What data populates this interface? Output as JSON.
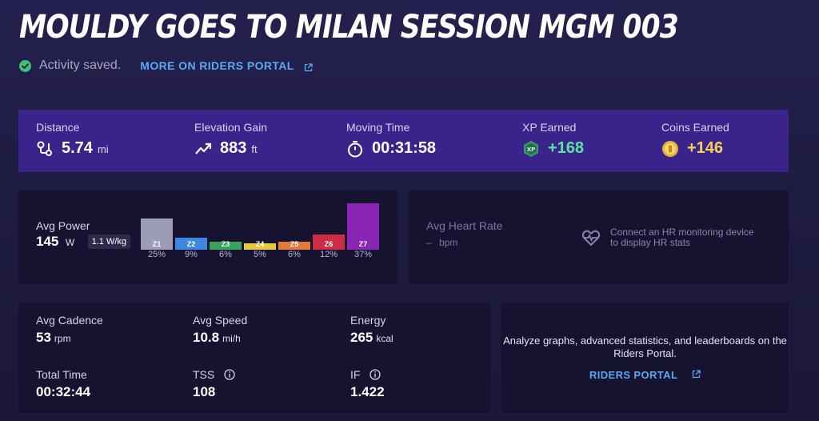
{
  "header": {
    "title": "MOULDY GOES TO MILAN SESSION MGM 003",
    "saved_text": "Activity saved.",
    "portal_link": "MORE ON RIDERS PORTAL"
  },
  "stats": {
    "distance": {
      "label": "Distance",
      "value": "5.74",
      "unit": "mi"
    },
    "elevation": {
      "label": "Elevation Gain",
      "value": "883",
      "unit": "ft"
    },
    "moving_time": {
      "label": "Moving Time",
      "value": "00:31:58"
    },
    "xp": {
      "label": "XP Earned",
      "value": "+168",
      "icon_text": "XP"
    },
    "coins": {
      "label": "Coins Earned",
      "value": "+146"
    }
  },
  "power": {
    "label": "Avg Power",
    "value": "145",
    "unit": "W",
    "wkg": "1.1 W/kg",
    "zones": [
      {
        "name": "Z1",
        "pct": "25%",
        "level": 0.68,
        "color": "#9c9cb6"
      },
      {
        "name": "Z2",
        "pct": "9%",
        "level": 0.25,
        "color": "#3f87e0"
      },
      {
        "name": "Z3",
        "pct": "6%",
        "level": 0.17,
        "color": "#39a35b"
      },
      {
        "name": "Z4",
        "pct": "5%",
        "level": 0.14,
        "color": "#e6c93f"
      },
      {
        "name": "Z5",
        "pct": "6%",
        "level": 0.17,
        "color": "#e27b35"
      },
      {
        "name": "Z6",
        "pct": "12%",
        "level": 0.32,
        "color": "#cc2d45"
      },
      {
        "name": "Z7",
        "pct": "37%",
        "level": 1.0,
        "color": "#8b25b5"
      }
    ]
  },
  "heart_rate": {
    "label": "Avg Heart Rate",
    "value": "–",
    "unit": "bpm",
    "message": "Connect an HR monitoring device to display HR stats"
  },
  "metrics": {
    "cadence": {
      "label": "Avg Cadence",
      "value": "53",
      "unit": "rpm"
    },
    "speed": {
      "label": "Avg Speed",
      "value": "10.8",
      "unit": "mi/h"
    },
    "energy": {
      "label": "Energy",
      "value": "265",
      "unit": "kcal"
    },
    "total_time": {
      "label": "Total Time",
      "value": "00:32:44"
    },
    "tss": {
      "label": "TSS",
      "value": "108"
    },
    "if": {
      "label": "IF",
      "value": "1.422"
    }
  },
  "promo": {
    "text": "Analyze graphs, advanced statistics, and leaderboards on the Riders Portal.",
    "link": "RIDERS PORTAL"
  }
}
